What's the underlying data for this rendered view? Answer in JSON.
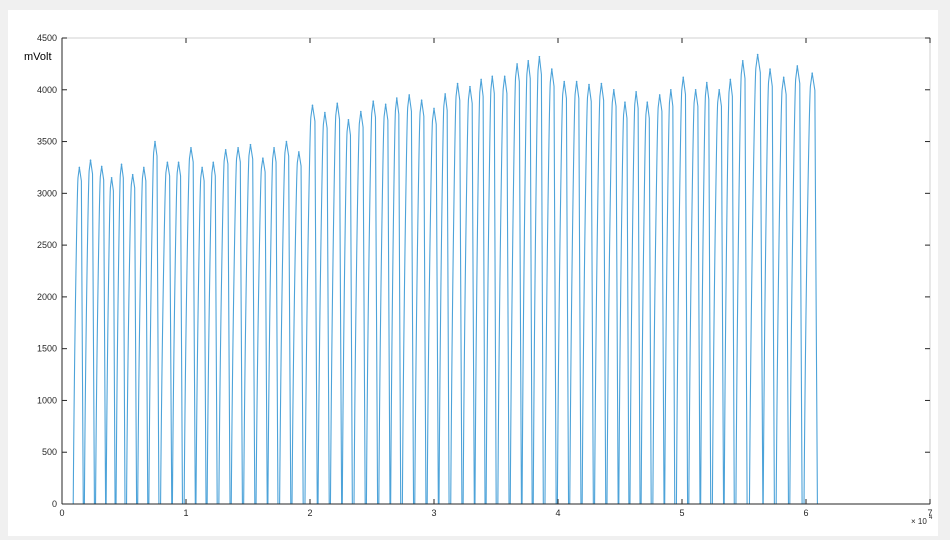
{
  "chart_data": {
    "type": "line",
    "title": "",
    "xlabel": "",
    "ylabel": "mVolt",
    "x_exponent_label": "× 10",
    "x_exponent_power": "4",
    "xlim": [
      0,
      7
    ],
    "ylim": [
      0,
      4500
    ],
    "x_ticks": [
      "0",
      "1",
      "2",
      "3",
      "4",
      "5",
      "6",
      "7"
    ],
    "y_ticks": [
      "0",
      "500",
      "1000",
      "1500",
      "2000",
      "2500",
      "3000",
      "3500",
      "4000",
      "4500"
    ],
    "grid": false,
    "x_units_note": "x values in units of 10^4 samples",
    "series": [
      {
        "color": "#4da3d9",
        "peaks": [
          {
            "x": 0.14,
            "y": 3250
          },
          {
            "x": 0.23,
            "y": 3320
          },
          {
            "x": 0.32,
            "y": 3260
          },
          {
            "x": 0.4,
            "y": 3150
          },
          {
            "x": 0.48,
            "y": 3280
          },
          {
            "x": 0.57,
            "y": 3180
          },
          {
            "x": 0.66,
            "y": 3250
          },
          {
            "x": 0.75,
            "y": 3500
          },
          {
            "x": 0.85,
            "y": 3300
          },
          {
            "x": 0.94,
            "y": 3300
          },
          {
            "x": 1.04,
            "y": 3440
          },
          {
            "x": 1.13,
            "y": 3250
          },
          {
            "x": 1.22,
            "y": 3300
          },
          {
            "x": 1.32,
            "y": 3420
          },
          {
            "x": 1.42,
            "y": 3440
          },
          {
            "x": 1.52,
            "y": 3470
          },
          {
            "x": 1.62,
            "y": 3340
          },
          {
            "x": 1.71,
            "y": 3440
          },
          {
            "x": 1.81,
            "y": 3500
          },
          {
            "x": 1.91,
            "y": 3400
          },
          {
            "x": 2.02,
            "y": 3850
          },
          {
            "x": 2.12,
            "y": 3780
          },
          {
            "x": 2.22,
            "y": 3870
          },
          {
            "x": 2.31,
            "y": 3710
          },
          {
            "x": 2.41,
            "y": 3790
          },
          {
            "x": 2.51,
            "y": 3890
          },
          {
            "x": 2.61,
            "y": 3860
          },
          {
            "x": 2.7,
            "y": 3920
          },
          {
            "x": 2.8,
            "y": 3950
          },
          {
            "x": 2.9,
            "y": 3900
          },
          {
            "x": 3.0,
            "y": 3820
          },
          {
            "x": 3.09,
            "y": 3960
          },
          {
            "x": 3.19,
            "y": 4060
          },
          {
            "x": 3.29,
            "y": 4030
          },
          {
            "x": 3.38,
            "y": 4100
          },
          {
            "x": 3.47,
            "y": 4130
          },
          {
            "x": 3.57,
            "y": 4130
          },
          {
            "x": 3.67,
            "y": 4250
          },
          {
            "x": 3.76,
            "y": 4280
          },
          {
            "x": 3.85,
            "y": 4320
          },
          {
            "x": 3.95,
            "y": 4200
          },
          {
            "x": 4.05,
            "y": 4080
          },
          {
            "x": 4.15,
            "y": 4080
          },
          {
            "x": 4.25,
            "y": 4050
          },
          {
            "x": 4.35,
            "y": 4060
          },
          {
            "x": 4.45,
            "y": 4000
          },
          {
            "x": 4.54,
            "y": 3880
          },
          {
            "x": 4.63,
            "y": 3980
          },
          {
            "x": 4.72,
            "y": 3880
          },
          {
            "x": 4.82,
            "y": 3950
          },
          {
            "x": 4.91,
            "y": 4000
          },
          {
            "x": 5.01,
            "y": 4120
          },
          {
            "x": 5.11,
            "y": 4000
          },
          {
            "x": 5.2,
            "y": 4070
          },
          {
            "x": 5.3,
            "y": 4000
          },
          {
            "x": 5.39,
            "y": 4100
          },
          {
            "x": 5.49,
            "y": 4280
          },
          {
            "x": 5.61,
            "y": 4340
          },
          {
            "x": 5.71,
            "y": 4200
          },
          {
            "x": 5.82,
            "y": 4120
          },
          {
            "x": 5.93,
            "y": 4230
          },
          {
            "x": 6.05,
            "y": 4160
          }
        ]
      }
    ]
  }
}
